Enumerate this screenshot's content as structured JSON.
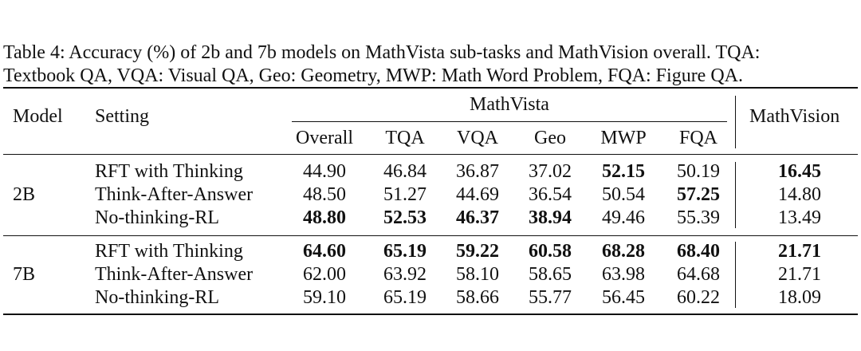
{
  "caption": {
    "line1": "Table 4: Accuracy (%) of 2b and 7b models on MathVista sub-tasks and MathVision overall. TQA:",
    "line2": "Textbook QA, VQA: Visual QA, Geo: Geometry, MWP: Math Word Problem, FQA: Figure QA."
  },
  "header": {
    "model": "Model",
    "setting": "Setting",
    "mathvista": "MathVista",
    "mathvision": "MathVision",
    "sub": [
      "Overall",
      "TQA",
      "VQA",
      "Geo",
      "MWP",
      "FQA"
    ]
  },
  "groups": [
    {
      "model": "2B",
      "rows": [
        {
          "setting": "RFT with Thinking",
          "values": [
            "44.90",
            "46.84",
            "36.87",
            "37.02",
            "52.15",
            "50.19",
            "16.45"
          ],
          "bold": [
            false,
            false,
            false,
            false,
            true,
            false,
            true
          ]
        },
        {
          "setting": "Think-After-Answer",
          "values": [
            "48.50",
            "51.27",
            "44.69",
            "36.54",
            "50.54",
            "57.25",
            "14.80"
          ],
          "bold": [
            false,
            false,
            false,
            false,
            false,
            true,
            false
          ]
        },
        {
          "setting": "No-thinking-RL",
          "values": [
            "48.80",
            "52.53",
            "46.37",
            "38.94",
            "49.46",
            "55.39",
            "13.49"
          ],
          "bold": [
            true,
            true,
            true,
            true,
            false,
            false,
            false
          ]
        }
      ]
    },
    {
      "model": "7B",
      "rows": [
        {
          "setting": "RFT with Thinking",
          "values": [
            "64.60",
            "65.19",
            "59.22",
            "60.58",
            "68.28",
            "68.40",
            "21.71"
          ],
          "bold": [
            true,
            true,
            true,
            true,
            true,
            true,
            true
          ]
        },
        {
          "setting": "Think-After-Answer",
          "values": [
            "62.00",
            "63.92",
            "58.10",
            "58.65",
            "63.98",
            "64.68",
            "21.71"
          ],
          "bold": [
            false,
            false,
            false,
            false,
            false,
            false,
            false
          ]
        },
        {
          "setting": "No-thinking-RL",
          "values": [
            "59.10",
            "65.19",
            "58.66",
            "55.77",
            "56.45",
            "60.22",
            "18.09"
          ],
          "bold": [
            false,
            false,
            false,
            false,
            false,
            false,
            false
          ]
        }
      ]
    }
  ]
}
